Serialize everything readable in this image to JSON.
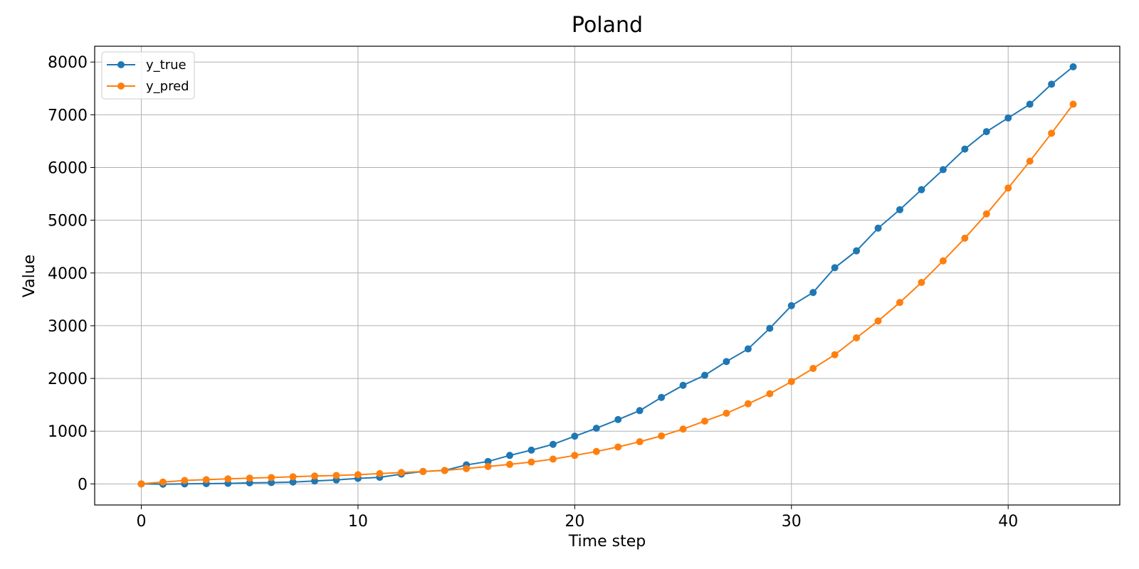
{
  "chart_data": {
    "type": "line",
    "title": "Poland",
    "xlabel": "Time step",
    "ylabel": "Value",
    "xlim": [
      -2.15,
      45.15
    ],
    "ylim": [
      -400,
      8300
    ],
    "xticks": [
      0,
      10,
      20,
      30,
      40
    ],
    "yticks": [
      0,
      1000,
      2000,
      3000,
      4000,
      5000,
      6000,
      7000,
      8000
    ],
    "grid": true,
    "legend_position": "top-left",
    "x": [
      0,
      1,
      2,
      3,
      4,
      5,
      6,
      7,
      8,
      9,
      10,
      11,
      12,
      13,
      14,
      15,
      16,
      17,
      18,
      19,
      20,
      21,
      22,
      23,
      24,
      25,
      26,
      27,
      28,
      29,
      30,
      31,
      32,
      33,
      34,
      35,
      36,
      37,
      38,
      39,
      40,
      41,
      42,
      43
    ],
    "series": [
      {
        "name": "y_true",
        "color": "#1f77b4",
        "values": [
          0,
          -5,
          0,
          5,
          10,
          20,
          25,
          35,
          55,
          75,
          105,
          125,
          185,
          235,
          255,
          360,
          425,
          540,
          640,
          750,
          905,
          1055,
          1220,
          1390,
          1640,
          1870,
          2060,
          2320,
          2560,
          2950,
          3380,
          3630,
          4100,
          4420,
          4850,
          5200,
          5580,
          5960,
          6350,
          6680,
          6940,
          7200,
          7580,
          7910
        ]
      },
      {
        "name": "y_pred",
        "color": "#ff7f0e",
        "values": [
          0,
          35,
          65,
          80,
          95,
          110,
          120,
          135,
          150,
          160,
          175,
          195,
          215,
          235,
          255,
          290,
          330,
          370,
          415,
          470,
          540,
          615,
          700,
          800,
          910,
          1040,
          1190,
          1340,
          1520,
          1710,
          1940,
          2190,
          2450,
          2770,
          3090,
          3440,
          3820,
          4230,
          4660,
          5120,
          5610,
          6120,
          6650,
          7200
        ]
      }
    ]
  }
}
